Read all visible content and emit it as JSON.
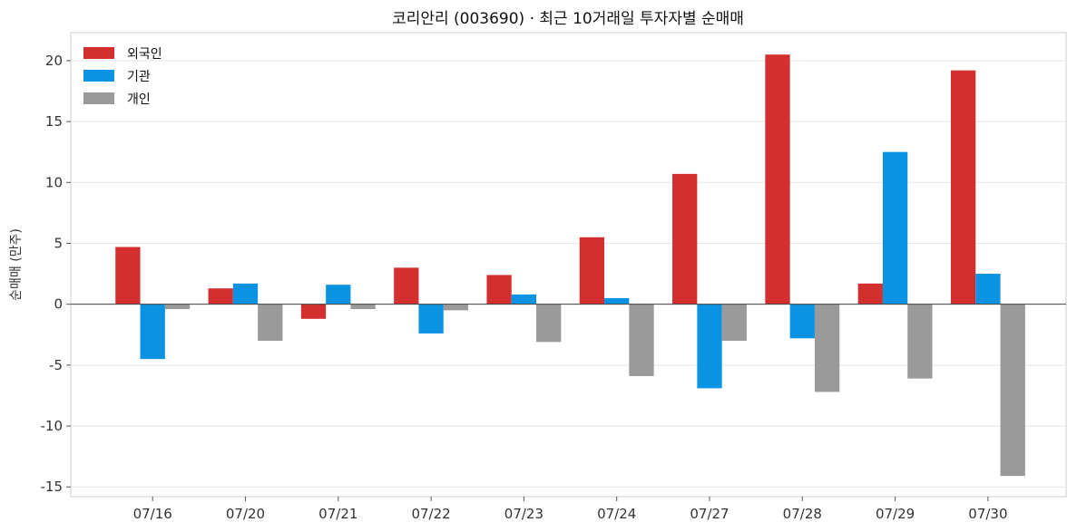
{
  "chart_data": {
    "type": "bar",
    "title": "코리안리 (003690) · 최근 10거래일 투자자별 순매매",
    "xlabel": "",
    "ylabel": "순매매 (만주)",
    "categories": [
      "07/16",
      "07/20",
      "07/21",
      "07/22",
      "07/23",
      "07/24",
      "07/27",
      "07/28",
      "07/29",
      "07/30"
    ],
    "series": [
      {
        "name": "외국인",
        "color": "#d32f2f",
        "values": [
          4.7,
          1.3,
          -1.2,
          3.0,
          2.4,
          5.5,
          10.7,
          20.5,
          1.7,
          19.2
        ]
      },
      {
        "name": "기관",
        "color": "#0a93e2",
        "values": [
          -4.5,
          1.7,
          1.6,
          -2.4,
          0.8,
          0.5,
          -6.9,
          -2.8,
          12.5,
          2.5
        ]
      },
      {
        "name": "개인",
        "color": "#9a9a9a",
        "values": [
          -0.4,
          -3.0,
          -0.4,
          -0.5,
          -3.1,
          -5.9,
          -3.0,
          -7.2,
          -6.1,
          -14.1
        ]
      }
    ],
    "ylim": [
      -15.8,
      22.3
    ],
    "yticks": [
      -15,
      -10,
      -5,
      0,
      5,
      10,
      15,
      20
    ],
    "grid": true,
    "legend": "top-left"
  }
}
